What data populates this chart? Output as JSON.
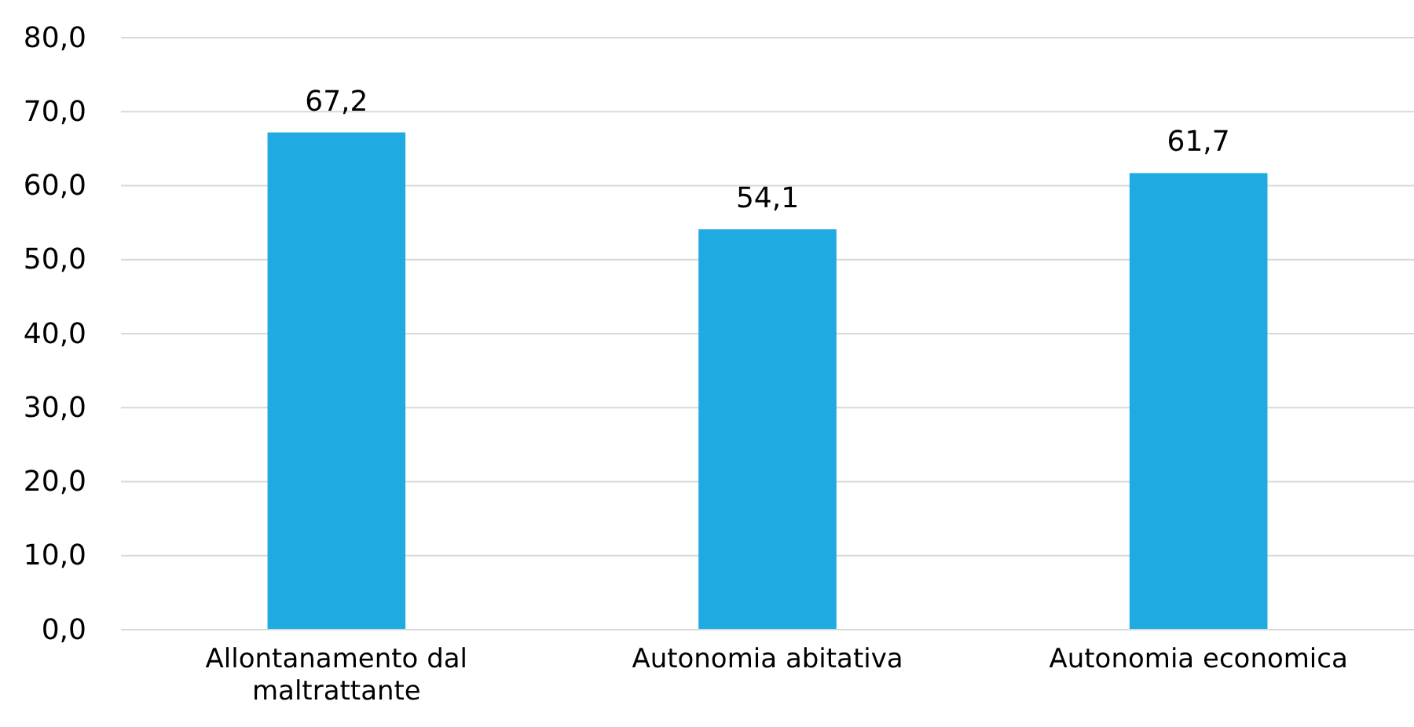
{
  "chart_data": {
    "type": "bar",
    "categories": [
      "Allontanamento dal maltrattante",
      "Autonomia abitativa",
      "Autonomia economica"
    ],
    "values": [
      67.2,
      54.1,
      61.7
    ],
    "value_labels": [
      "67,2",
      "54,1",
      "61,7"
    ],
    "color": "#1faae1",
    "ylim": [
      0,
      80
    ],
    "yticks": [
      {
        "value": 0,
        "label": "0,0"
      },
      {
        "value": 10,
        "label": "10,0"
      },
      {
        "value": 20,
        "label": "20,0"
      },
      {
        "value": 30,
        "label": "30,0"
      },
      {
        "value": 40,
        "label": "40,0"
      },
      {
        "value": 50,
        "label": "50,0"
      },
      {
        "value": 60,
        "label": "60,0"
      },
      {
        "value": 70,
        "label": "70,0"
      },
      {
        "value": 80,
        "label": "80,0"
      }
    ],
    "grid": "y"
  }
}
